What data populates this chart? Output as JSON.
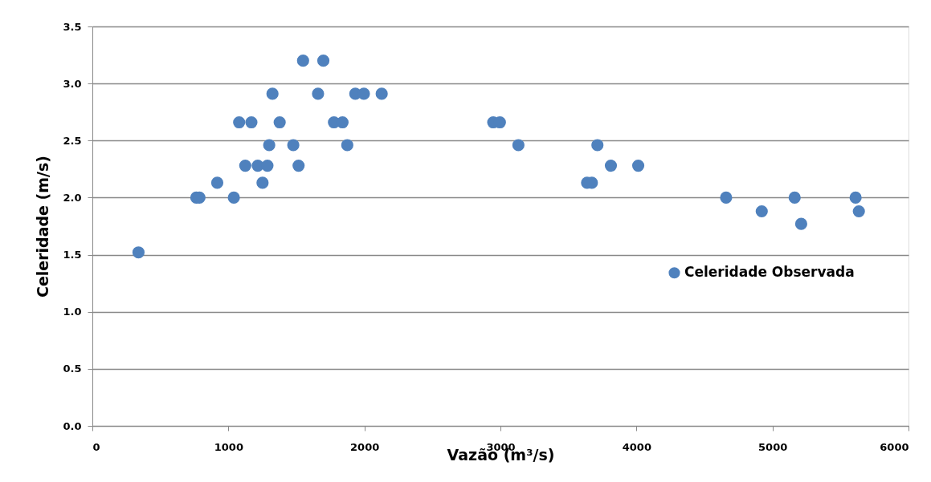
{
  "chart_data": {
    "type": "scatter",
    "xlabel": "Vazão (m³/s)",
    "ylabel": "Celeridade (m/s)",
    "xlim": [
      0,
      6000
    ],
    "xticks": [
      0,
      1000,
      2000,
      3000,
      4000,
      5000,
      6000
    ],
    "ylim": [
      0,
      3.5
    ],
    "yticks": [
      {
        "value": 0,
        "label": "0.0"
      },
      0.5,
      {
        "value": 1,
        "label": "1.0"
      },
      1.5,
      {
        "value": 2,
        "label": "2.0"
      },
      2.5,
      {
        "value": 3,
        "label": "3.0"
      },
      3.5
    ],
    "grid": "y",
    "legend": "right",
    "marker": "circle",
    "series": [
      {
        "name": "Celeridade Observada",
        "color": "#4f81bd",
        "x": [
          339,
          764,
          787,
          918,
          1040,
          1079,
          1124,
          1169,
          1216,
          1251,
          1287,
          1300,
          1324,
          1377,
          1477,
          1516,
          1549,
          1659,
          1698,
          1776,
          1839,
          1874,
          1933,
          1996,
          2127,
          2947,
          2996,
          3132,
          3637,
          3672,
          3713,
          3812,
          4013,
          4659,
          4921,
          5163,
          5211,
          5611,
          5635
        ],
        "values": [
          1.52,
          2.0,
          2.0,
          2.13,
          2.0,
          2.66,
          2.28,
          2.66,
          2.28,
          2.13,
          2.28,
          2.46,
          2.91,
          2.66,
          2.46,
          2.28,
          3.2,
          2.91,
          3.2,
          2.66,
          2.66,
          2.46,
          2.91,
          2.91,
          2.91,
          2.66,
          2.66,
          2.46,
          2.13,
          2.13,
          2.46,
          2.28,
          2.28,
          2.0,
          1.88,
          2.0,
          1.77,
          2.0,
          1.88
        ]
      }
    ]
  }
}
